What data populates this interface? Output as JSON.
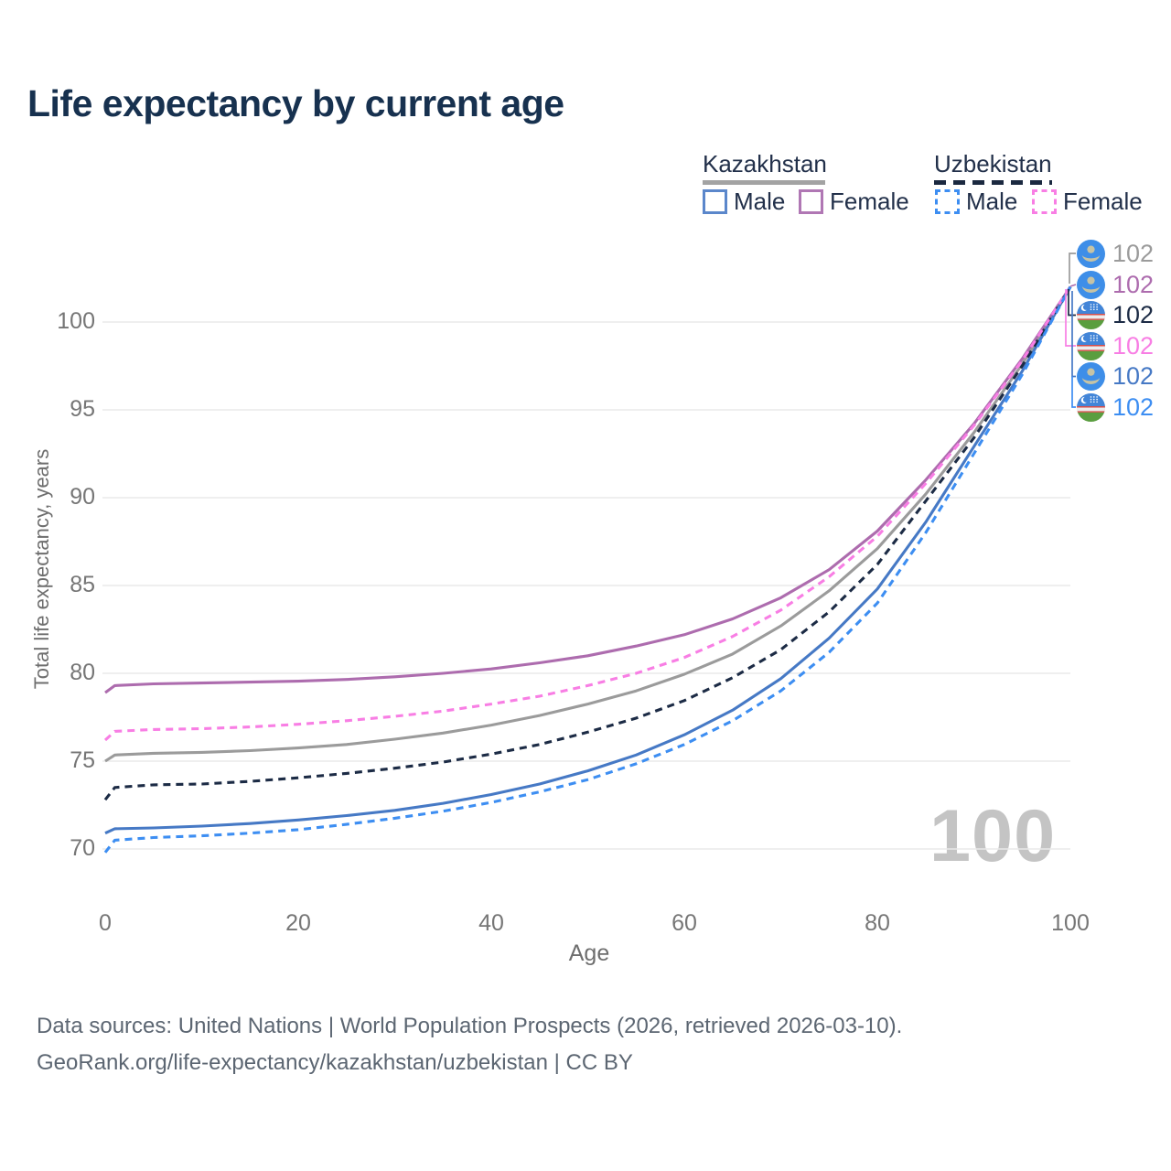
{
  "title": "Life expectancy by current age",
  "legend": {
    "kazakhstan": {
      "label": "Kazakhstan",
      "male": "Male",
      "female": "Female",
      "line_style": "solid"
    },
    "uzbekistan": {
      "label": "Uzbekistan",
      "male": "Male",
      "female": "Female",
      "line_style": "dashed"
    }
  },
  "axes": {
    "y_title": "Total life expectancy, years",
    "x_title": "Age"
  },
  "watermark": "100",
  "footer": {
    "line1": "Data sources: United Nations | World Population Prospects (2026, retrieved 2026-03-10).",
    "line2": "GeoRank.org/life-expectancy/kazakhstan/uzbekistan | CC BY"
  },
  "colors": {
    "title_text": "#17314f",
    "kz_all": "#9b9b9b",
    "kz_female": "#ad6cae",
    "kz_male": "#4679c5",
    "uz_all": "#1c2b45",
    "uz_female": "#f87ee4",
    "uz_male": "#3d8ef2",
    "grid": "#eaeaea",
    "tick_text": "#767676",
    "watermark_text": "#c4c4c4"
  },
  "chart_data": {
    "type": "line",
    "title": "Life expectancy by current age",
    "xlabel": "Age",
    "ylabel": "Total life expectancy, years",
    "xlim": [
      0,
      100
    ],
    "ylim": [
      69.5,
      102.5
    ],
    "xticks": [
      0,
      20,
      40,
      60,
      80,
      100
    ],
    "yticks": [
      70,
      75,
      80,
      85,
      90,
      95,
      100
    ],
    "grid": "horizontal-only",
    "legend_position": "top-right",
    "x": [
      0,
      1,
      5,
      10,
      15,
      20,
      25,
      30,
      35,
      40,
      45,
      50,
      55,
      60,
      65,
      70,
      75,
      80,
      85,
      90,
      95,
      100
    ],
    "series": [
      {
        "id": "kz-all",
        "name": "Kazakhstan — Both sexes",
        "country": "Kazakhstan",
        "sex": "all",
        "color": "#9b9b9b",
        "dash": false,
        "values": [
          75.0,
          75.35,
          75.45,
          75.5,
          75.6,
          75.75,
          75.95,
          76.25,
          76.6,
          77.05,
          77.6,
          78.25,
          79.0,
          79.95,
          81.1,
          82.7,
          84.7,
          87.1,
          90.2,
          93.7,
          97.6,
          102
        ]
      },
      {
        "id": "kz-female",
        "name": "Kazakhstan — Female",
        "country": "Kazakhstan",
        "sex": "female",
        "color": "#ad6cae",
        "dash": false,
        "values": [
          78.9,
          79.3,
          79.4,
          79.45,
          79.5,
          79.55,
          79.65,
          79.8,
          80.0,
          80.25,
          80.6,
          81.0,
          81.55,
          82.2,
          83.1,
          84.3,
          85.9,
          88.1,
          91.0,
          94.2,
          97.9,
          102
        ]
      },
      {
        "id": "kz-male",
        "name": "Kazakhstan — Male",
        "country": "Kazakhstan",
        "sex": "male",
        "color": "#4679c5",
        "dash": false,
        "values": [
          70.9,
          71.15,
          71.2,
          71.3,
          71.45,
          71.65,
          71.9,
          72.2,
          72.6,
          73.1,
          73.7,
          74.45,
          75.35,
          76.5,
          77.9,
          79.7,
          82.0,
          84.8,
          88.6,
          92.9,
          97.2,
          102
        ]
      },
      {
        "id": "uz-all",
        "name": "Uzbekistan — Both sexes",
        "country": "Uzbekistan",
        "sex": "all",
        "color": "#1c2b45",
        "dash": true,
        "values": [
          72.8,
          73.5,
          73.65,
          73.7,
          73.85,
          74.05,
          74.3,
          74.6,
          74.95,
          75.4,
          75.95,
          76.65,
          77.45,
          78.45,
          79.75,
          81.35,
          83.5,
          86.2,
          89.8,
          93.4,
          97.5,
          102
        ]
      },
      {
        "id": "uz-female",
        "name": "Uzbekistan — Female",
        "country": "Uzbekistan",
        "sex": "female",
        "color": "#f87ee4",
        "dash": true,
        "values": [
          76.2,
          76.7,
          76.8,
          76.85,
          76.95,
          77.1,
          77.3,
          77.55,
          77.85,
          78.25,
          78.7,
          79.3,
          80.0,
          80.9,
          82.1,
          83.6,
          85.5,
          87.8,
          90.8,
          94.1,
          97.8,
          102
        ]
      },
      {
        "id": "uz-male",
        "name": "Uzbekistan — Male",
        "country": "Uzbekistan",
        "sex": "male",
        "color": "#3d8ef2",
        "dash": true,
        "values": [
          69.8,
          70.5,
          70.65,
          70.75,
          70.9,
          71.1,
          71.4,
          71.75,
          72.15,
          72.65,
          73.25,
          73.95,
          74.85,
          75.95,
          77.3,
          79.0,
          81.2,
          84.0,
          88.0,
          92.5,
          97.0,
          102
        ]
      }
    ],
    "end_labels": [
      {
        "series": "kz-all",
        "flag": "kz",
        "value": "102",
        "color": "#9b9b9b"
      },
      {
        "series": "kz-female",
        "flag": "kz",
        "value": "102",
        "color": "#ad6cae"
      },
      {
        "series": "uz-all",
        "flag": "uz",
        "value": "102",
        "color": "#1c2b45"
      },
      {
        "series": "uz-female",
        "flag": "uz",
        "value": "102",
        "color": "#f87ee4"
      },
      {
        "series": "kz-male",
        "flag": "kz",
        "value": "102",
        "color": "#4679c5"
      },
      {
        "series": "uz-male",
        "flag": "uz",
        "value": "102",
        "color": "#3d8ef2"
      }
    ]
  }
}
